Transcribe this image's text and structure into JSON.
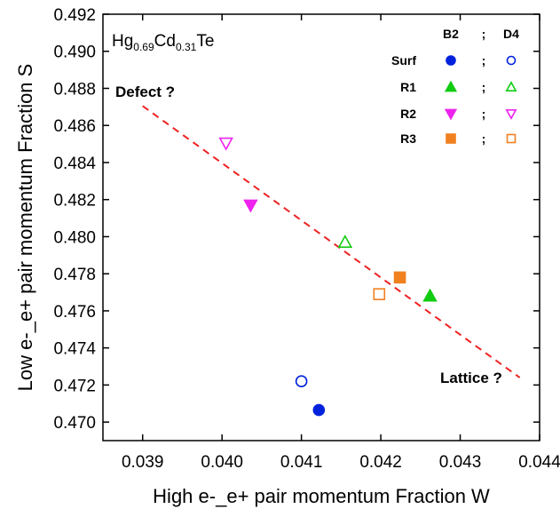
{
  "chart_data": {
    "type": "scatter",
    "xlabel": "High e-_e+ pair momentum Fraction W",
    "ylabel": "Low e-_e+ pair momentum Fraction S",
    "xlim": [
      0.0385,
      0.044
    ],
    "ylim": [
      0.469,
      0.492
    ],
    "x_ticks": [
      "0.039",
      "0.040",
      "0.041",
      "0.042",
      "0.043",
      "0.044"
    ],
    "y_ticks": [
      "0.470",
      "0.472",
      "0.474",
      "0.476",
      "0.478",
      "0.480",
      "0.482",
      "0.484",
      "0.486",
      "0.488",
      "0.490",
      "0.492"
    ],
    "sample_label": {
      "base1": "Hg",
      "sub1": "0.69",
      "base2": "Cd",
      "sub2": "0.31",
      "base3": "Te"
    },
    "legend": {
      "header_b": "B2",
      "header_sep": ";",
      "header_d": "D4",
      "rows": [
        {
          "label": "Surf",
          "sep": ";",
          "marker": "circle",
          "color": "#0022dd"
        },
        {
          "label": "R1",
          "sep": ";",
          "marker": "triangle-up",
          "color": "#11cc11"
        },
        {
          "label": "R2",
          "sep": ";",
          "marker": "triangle-down",
          "color": "#ee22ee"
        },
        {
          "label": "R3",
          "sep": ";",
          "marker": "square",
          "color": "#f08020"
        }
      ]
    },
    "series": [
      {
        "marker": "circle",
        "filled": true,
        "color": "#0022dd",
        "x": 0.04122,
        "y": 0.47065
      },
      {
        "marker": "circle",
        "filled": false,
        "color": "#0022dd",
        "x": 0.041,
        "y": 0.4722
      },
      {
        "marker": "triangle-up",
        "filled": true,
        "color": "#11cc11",
        "x": 0.04262,
        "y": 0.4768
      },
      {
        "marker": "triangle-up",
        "filled": false,
        "color": "#11cc11",
        "x": 0.04155,
        "y": 0.4797
      },
      {
        "marker": "triangle-down",
        "filled": true,
        "color": "#ee22ee",
        "x": 0.04036,
        "y": 0.4817
      },
      {
        "marker": "triangle-down",
        "filled": false,
        "color": "#ee22ee",
        "x": 0.04005,
        "y": 0.48505
      },
      {
        "marker": "square",
        "filled": true,
        "color": "#f08020",
        "x": 0.04224,
        "y": 0.4778
      },
      {
        "marker": "square",
        "filled": false,
        "color": "#f08020",
        "x": 0.04198,
        "y": 0.4769
      }
    ],
    "trend_line": {
      "x": [
        0.039,
        0.04375
      ],
      "y": [
        0.48705,
        0.4724
      ],
      "color": "#ee2222",
      "style": "dashed"
    },
    "annotations": [
      {
        "text": "Defect ?",
        "x": 0.03861,
        "y": 0.488
      },
      {
        "text": "Lattice ?",
        "x": 0.04368,
        "y": 0.47255
      }
    ]
  }
}
